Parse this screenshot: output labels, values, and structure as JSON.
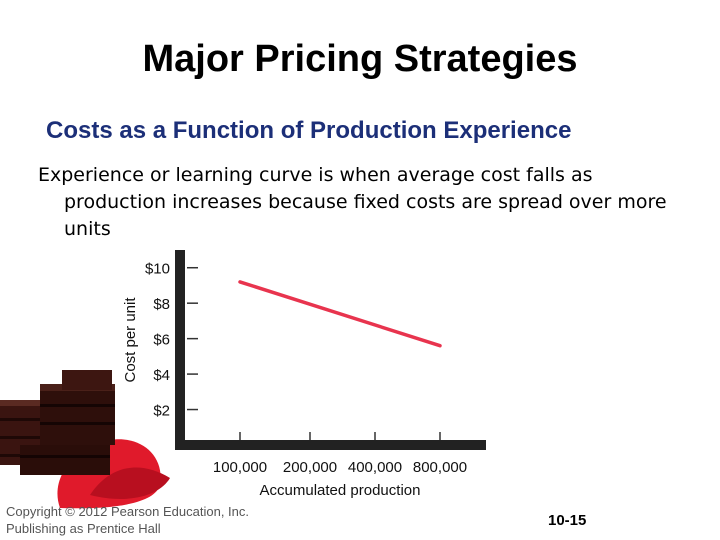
{
  "slide": {
    "title": "Major Pricing Strategies",
    "subtitle": "Costs as a Function of Production Experience",
    "body": "Experience or learning curve is when average cost falls as production increases because fixed costs are spread over more units",
    "footer_line1": "Copyright © 2012 Pearson Education, Inc.",
    "footer_line2": "Publishing as Prentice Hall",
    "slide_number": "10-15"
  },
  "chart_data": {
    "type": "line",
    "title": "",
    "xlabel": "Accumulated production",
    "ylabel": "Cost per unit",
    "categories": [
      "100,000",
      "200,000",
      "400,000",
      "800,000"
    ],
    "y_ticks": [
      "$2",
      "$4",
      "$6",
      "$8",
      "$10"
    ],
    "y_tick_values": [
      2,
      4,
      6,
      8,
      10
    ],
    "ylim": [
      0,
      11
    ],
    "grid": false,
    "series": [
      {
        "name": "",
        "color": "#e8344e",
        "points": [
          {
            "x": 100000,
            "y": 9.2
          },
          {
            "x": 800000,
            "y": 5.6
          }
        ]
      }
    ]
  }
}
